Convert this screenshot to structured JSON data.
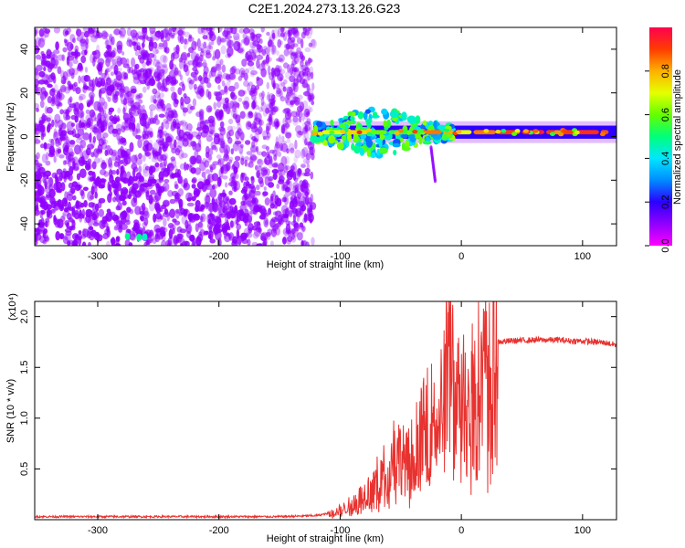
{
  "title": "C2E1.2024.273.13.26.G23",
  "colors": {
    "spectrogram_cmap": [
      "#ff00ff",
      "#9000ff",
      "#2b00ff",
      "#008cff",
      "#00e6ff",
      "#00ff7a",
      "#64ff00",
      "#e6ff00",
      "#ffb000",
      "#ff3c00",
      "#ff0050"
    ],
    "snr_line": "#e8322f"
  },
  "chart_data": [
    {
      "type": "heatmap",
      "xlabel": "Height of straight line (km)",
      "ylabel": "Frequency (Hz)",
      "xlim": [
        -352,
        128
      ],
      "ylim": [
        -50,
        50
      ],
      "xticks": [
        -300,
        -200,
        -100,
        0,
        100
      ],
      "yticks": [
        -40,
        -20,
        0,
        20,
        40
      ],
      "grid": false,
      "colorbar": {
        "label": "Normalized spectral amplitude",
        "range": [
          0,
          1
        ],
        "ticks": [
          0.0,
          0.2,
          0.4,
          0.6,
          0.8
        ]
      },
      "regions": [
        {
          "x_range": [
            -352,
            -122
          ],
          "freq_range": [
            -50,
            50
          ],
          "amplitude": 0.05,
          "texture": "noise"
        },
        {
          "x_range": [
            -122,
            128
          ],
          "freq_center": 2,
          "freq_halfwidth": 3,
          "amplitude": 0.9,
          "texture": "tone"
        }
      ]
    },
    {
      "type": "line",
      "xlabel": "Height of straight line (km)",
      "ylabel": "SNR (10 * v/v)",
      "y_multiplier": "(x10⁴)",
      "xlim": [
        -352,
        128
      ],
      "ylim": [
        0,
        2.15
      ],
      "xticks": [
        -300,
        -200,
        -100,
        0,
        100
      ],
      "yticks": [
        0.5,
        1.0,
        1.5,
        2.0
      ],
      "ytick_labels": [
        "0.5",
        "1.0",
        "1.5",
        "2.0"
      ],
      "grid": false,
      "series": [
        {
          "x": [
            -352,
            -300,
            -250,
            -200,
            -150,
            -120,
            -105,
            -95,
            -80,
            -65,
            -55,
            -45,
            -35,
            -25,
            -20,
            -15,
            -12,
            -10,
            -5,
            0,
            5,
            10,
            20,
            30,
            40,
            60,
            80,
            90,
            100,
            110,
            120,
            128
          ],
          "y": [
            0.03,
            0.03,
            0.03,
            0.03,
            0.03,
            0.04,
            0.07,
            0.12,
            0.25,
            0.45,
            0.7,
            0.55,
            0.8,
            1.0,
            1.1,
            1.3,
            1.85,
            2.05,
            1.2,
            1.35,
            1.45,
            1.55,
            1.7,
            1.75,
            1.76,
            1.77,
            1.77,
            1.76,
            1.76,
            1.75,
            1.74,
            1.72
          ]
        }
      ]
    }
  ]
}
